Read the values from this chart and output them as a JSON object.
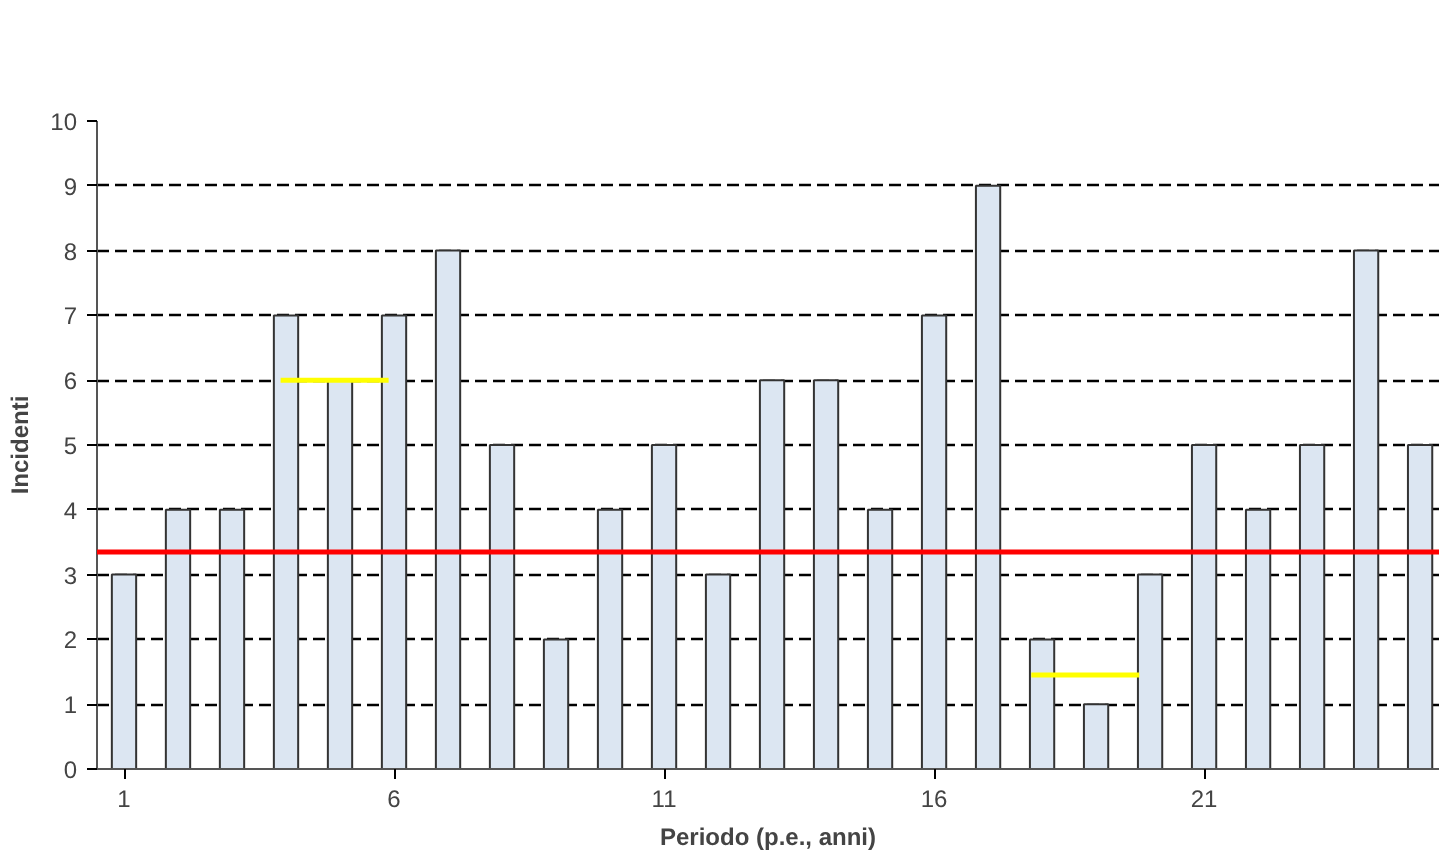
{
  "chart_data": {
    "type": "bar",
    "xlabel": "Periodo (p.e., anni)",
    "ylabel": "Incidenti",
    "x": [
      1,
      2,
      3,
      4,
      5,
      6,
      7,
      8,
      9,
      10,
      11,
      12,
      13,
      14,
      15,
      16,
      17,
      18,
      19,
      20,
      21,
      22,
      23,
      24,
      25
    ],
    "series": [
      {
        "color": "#dce6f2",
        "values": [
          3,
          4,
          4,
          7,
          6,
          7,
          8,
          5,
          2,
          4,
          5,
          3,
          6,
          6,
          4,
          7,
          9,
          2,
          1,
          3,
          5,
          4,
          5,
          8,
          5
        ]
      },
      {
        "type": "line",
        "color": "#ffff00",
        "x": [
          3.9,
          5.9
        ],
        "values": [
          6,
          6
        ]
      },
      {
        "type": "line",
        "color": "#ffff00",
        "x": [
          17.8,
          19.8
        ],
        "values": [
          1.45,
          1.45
        ]
      }
    ],
    "ref_lines": [
      {
        "axis": "y",
        "value": 3.35,
        "label": null,
        "color": "#ff0000"
      }
    ],
    "xlim": [
      0.5,
      25.35
    ],
    "xticks": [
      1,
      6,
      11,
      16,
      21
    ],
    "ylim": [
      0,
      10
    ],
    "yticks": [
      0,
      1,
      2,
      3,
      4,
      5,
      6,
      7,
      8,
      9,
      10
    ],
    "grid": "y"
  }
}
